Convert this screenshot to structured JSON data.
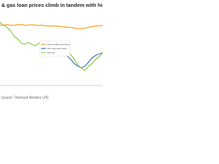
{
  "chart_data": {
    "type": "line",
    "title": "l & gas loan prices climb in tandem with higher oil pr",
    "source": "Source: Thomson Reuters LPC",
    "ylim": [
      0,
      100
    ],
    "series": [
      {
        "name": "All secondary loan prices",
        "color": "#f39c12",
        "values": [
          88,
          88,
          89,
          88,
          88,
          89,
          89,
          88,
          88,
          89,
          88,
          88,
          88,
          87,
          87,
          87,
          87,
          86,
          86,
          85,
          85,
          84,
          83,
          83,
          84,
          85,
          86,
          87,
          87,
          88
        ]
      },
      {
        "name": "Oil & Gas loan prices",
        "color": "#2f6db5",
        "values": [
          null,
          null,
          null,
          null,
          null,
          null,
          null,
          null,
          null,
          null,
          null,
          null,
          50,
          52,
          50,
          48,
          47,
          46,
          45,
          43,
          38,
          32,
          28,
          26,
          28,
          34,
          40,
          44,
          46,
          48
        ]
      },
      {
        "name": "Oil price",
        "color": "#8cc63f",
        "values": [
          92,
          88,
          85,
          80,
          72,
          68,
          62,
          60,
          63,
          60,
          58,
          62,
          60,
          57,
          58,
          56,
          55,
          55,
          53,
          50,
          45,
          38,
          30,
          25,
          22,
          28,
          32,
          38,
          42,
          48
        ]
      }
    ]
  }
}
